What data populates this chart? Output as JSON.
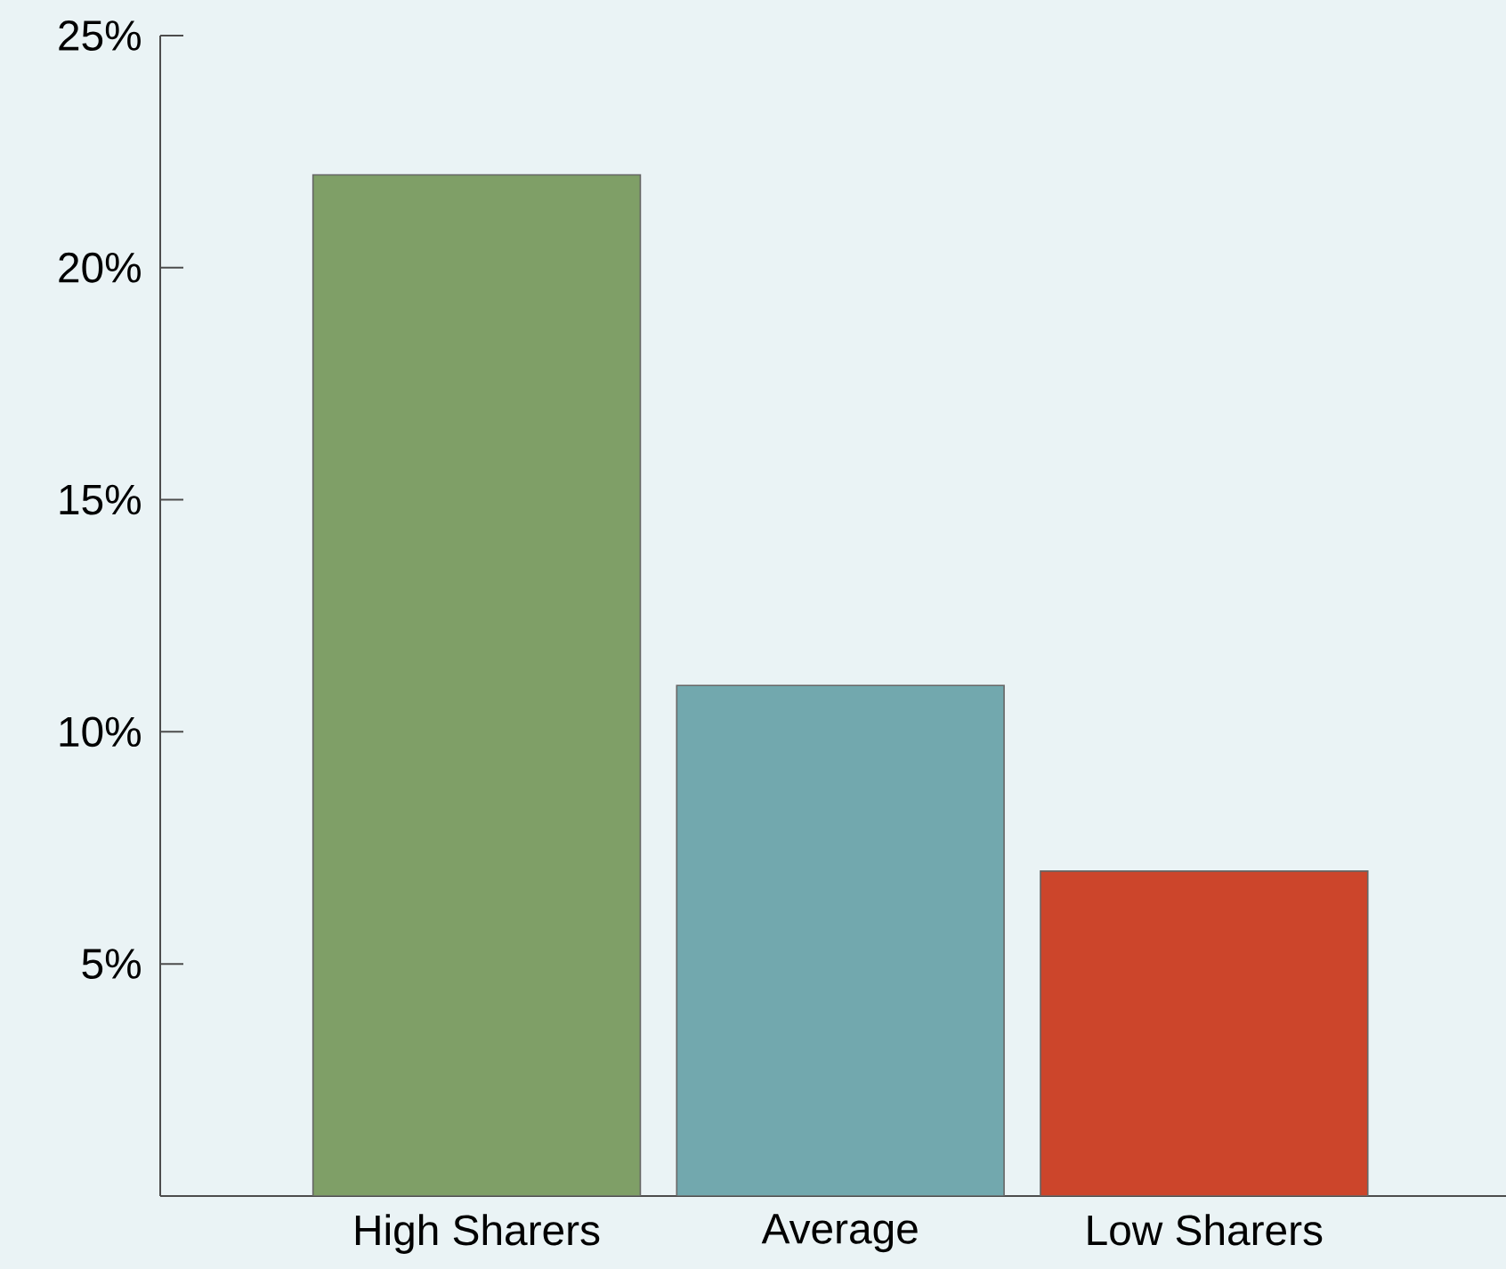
{
  "chart_data": {
    "type": "bar",
    "categories": [
      "High Sharers",
      "Average",
      "Low Sharers"
    ],
    "values": [
      22,
      11,
      7
    ],
    "colors": [
      "#7f9f67",
      "#72a8ae",
      "#cc452b"
    ],
    "ylim": [
      0,
      25
    ],
    "yticks": [
      {
        "value": 5,
        "label": "5%"
      },
      {
        "value": 10,
        "label": "10%"
      },
      {
        "value": 15,
        "label": "15%"
      },
      {
        "value": 20,
        "label": "20%"
      },
      {
        "value": 25,
        "label": "25%"
      }
    ],
    "grid": false
  }
}
